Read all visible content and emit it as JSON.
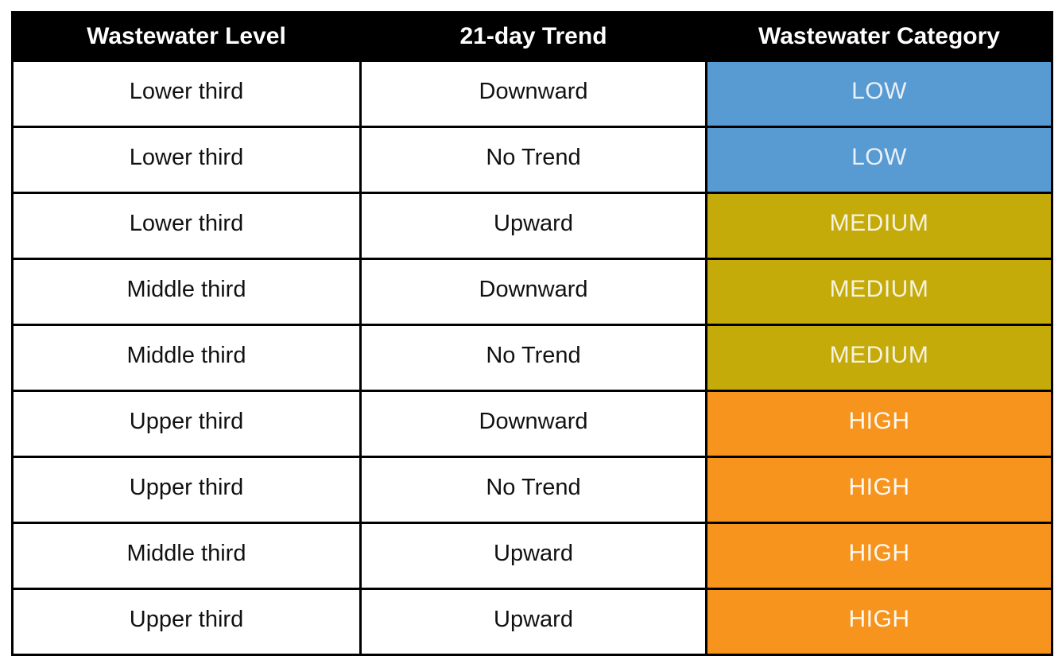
{
  "table": {
    "headers": [
      {
        "label": "Wastewater Level"
      },
      {
        "label": "21-day Trend"
      },
      {
        "label": "Wastewater Category"
      }
    ],
    "rows": [
      {
        "level": "Lower third",
        "trend": "Downward",
        "category": "LOW"
      },
      {
        "level": "Lower third",
        "trend": "No Trend",
        "category": "LOW"
      },
      {
        "level": "Lower third",
        "trend": "Upward",
        "category": "MEDIUM"
      },
      {
        "level": "Middle third",
        "trend": "Downward",
        "category": "MEDIUM"
      },
      {
        "level": "Middle third",
        "trend": "No Trend",
        "category": "MEDIUM"
      },
      {
        "level": "Upper third",
        "trend": "Downward",
        "category": "HIGH"
      },
      {
        "level": "Upper third",
        "trend": "No Trend",
        "category": "HIGH"
      },
      {
        "level": "Middle third",
        "trend": "Upward",
        "category": "HIGH"
      },
      {
        "level": "Upper third",
        "trend": "Upward",
        "category": "HIGH"
      }
    ],
    "category_styles": {
      "LOW": {
        "bg": "#589AD2",
        "fg": "#E9F0F8"
      },
      "MEDIUM": {
        "bg": "#C4AB0A",
        "fg": "#F6F2DF"
      },
      "HIGH": {
        "bg": "#F7941E",
        "fg": "#FFF9F2"
      }
    },
    "colors": {
      "header_bg": "#000000",
      "header_fg": "#FFFFFF",
      "border": "#000000",
      "cell_bg": "#FFFFFF",
      "cell_fg": "#111111"
    }
  },
  "chart_data": {
    "type": "table",
    "title": "",
    "columns": [
      "Wastewater Level",
      "21-day Trend",
      "Wastewater Category"
    ],
    "rows": [
      [
        "Lower third",
        "Downward",
        "LOW"
      ],
      [
        "Lower third",
        "No Trend",
        "LOW"
      ],
      [
        "Lower third",
        "Upward",
        "MEDIUM"
      ],
      [
        "Middle third",
        "Downward",
        "MEDIUM"
      ],
      [
        "Middle third",
        "No Trend",
        "MEDIUM"
      ],
      [
        "Upper third",
        "Downward",
        "HIGH"
      ],
      [
        "Upper third",
        "No Trend",
        "HIGH"
      ],
      [
        "Middle third",
        "Upward",
        "HIGH"
      ],
      [
        "Upper third",
        "Upward",
        "HIGH"
      ]
    ],
    "category_colors": {
      "LOW": "#589AD2",
      "MEDIUM": "#C4AB0A",
      "HIGH": "#F7941E"
    }
  }
}
